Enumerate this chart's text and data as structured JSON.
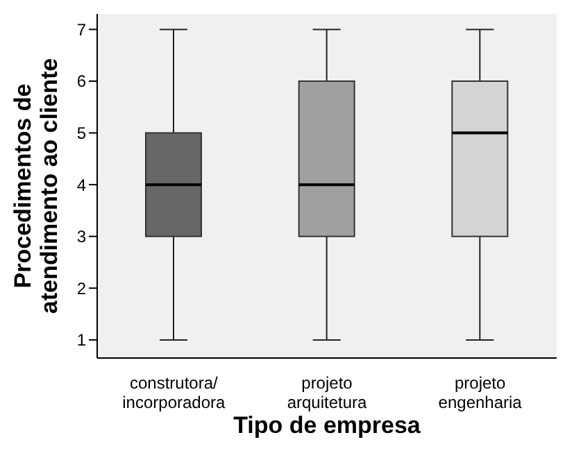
{
  "chart_data": {
    "type": "box",
    "xlabel": "Tipo de empresa",
    "ylabel": "Procedimentos de\natendimento ao cliente",
    "categories": [
      "construtora/\nincorporadora",
      "projeto\narquitetura",
      "projeto\nengenharia"
    ],
    "boxes": [
      {
        "low": 1,
        "q1": 3,
        "median": 4,
        "q3": 5,
        "high": 7
      },
      {
        "low": 1,
        "q1": 3,
        "median": 4,
        "q3": 6,
        "high": 7
      },
      {
        "low": 1,
        "q1": 3,
        "median": 5,
        "q3": 6,
        "high": 7
      }
    ],
    "colors": [
      "#676767",
      "#a0a0a0",
      "#d4d4d4"
    ],
    "ylim": [
      0.65,
      7.3
    ],
    "yticks": [
      1,
      2,
      3,
      4,
      5,
      6,
      7
    ],
    "grid": false,
    "legend": false
  }
}
